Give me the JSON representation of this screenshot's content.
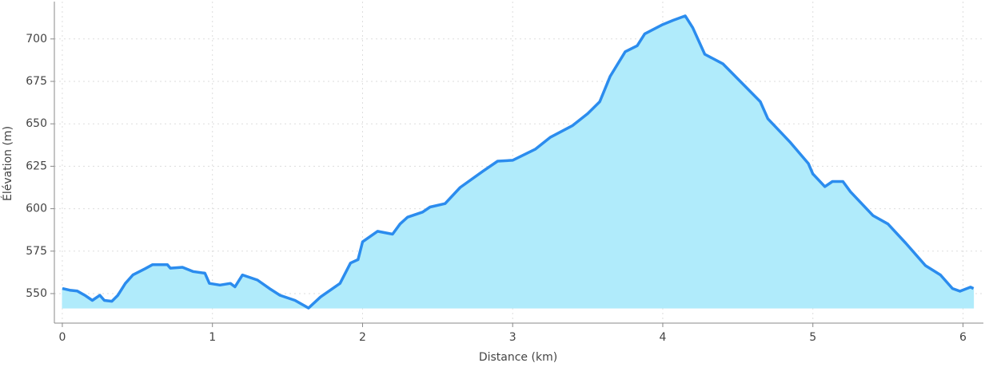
{
  "chart_data": {
    "type": "area",
    "x_label": "Distance (km)",
    "y_label": "Élévation (m)",
    "line_color": "#2b8cee",
    "fill_color": "#b0ebfb",
    "grid": true,
    "xlim": [
      -0.053,
      6.136
    ],
    "ylim": [
      532.6,
      722
    ],
    "xticks": [
      0,
      1,
      2,
      3,
      4,
      5,
      6
    ],
    "yticks": [
      550,
      575,
      600,
      625,
      650,
      675,
      700
    ],
    "x": [
      0,
      0.05,
      0.1,
      0.15,
      0.2,
      0.25,
      0.28,
      0.33,
      0.37,
      0.42,
      0.47,
      0.55,
      0.6,
      0.7,
      0.72,
      0.8,
      0.87,
      0.95,
      0.98,
      1.05,
      1.12,
      1.15,
      1.2,
      1.3,
      1.38,
      1.45,
      1.55,
      1.64,
      1.72,
      1.85,
      1.92,
      1.97,
      2.0,
      2.1,
      2.2,
      2.25,
      2.3,
      2.4,
      2.45,
      2.55,
      2.65,
      2.8,
      2.9,
      3.0,
      3.15,
      3.25,
      3.4,
      3.5,
      3.58,
      3.65,
      3.75,
      3.83,
      3.88,
      4.0,
      4.07,
      4.15,
      4.2,
      4.28,
      4.4,
      4.55,
      4.65,
      4.7,
      4.85,
      4.97,
      5.0,
      5.08,
      5.13,
      5.2,
      5.25,
      5.4,
      5.5,
      5.62,
      5.75,
      5.85,
      5.93,
      5.98,
      6.05,
      6.07
    ],
    "values": [
      553,
      552,
      551.5,
      549,
      546,
      549,
      546,
      545.5,
      549,
      556,
      561,
      564.6,
      567,
      567,
      565,
      565.5,
      563,
      562,
      556,
      555,
      556,
      554,
      561,
      558,
      553,
      549,
      546,
      541.5,
      548,
      556,
      568,
      570,
      580.5,
      586.7,
      585,
      591,
      595,
      598,
      601,
      603,
      612.5,
      622,
      628,
      628.5,
      635,
      642,
      649,
      656,
      663,
      678,
      692.5,
      696,
      703,
      708.5,
      711,
      713.6,
      706.6,
      691,
      685.4,
      672,
      663,
      653,
      639,
      626.6,
      620.5,
      613,
      616,
      616,
      610,
      596,
      591,
      579.6,
      566.5,
      561,
      553,
      551.4,
      553.8,
      553
    ]
  }
}
